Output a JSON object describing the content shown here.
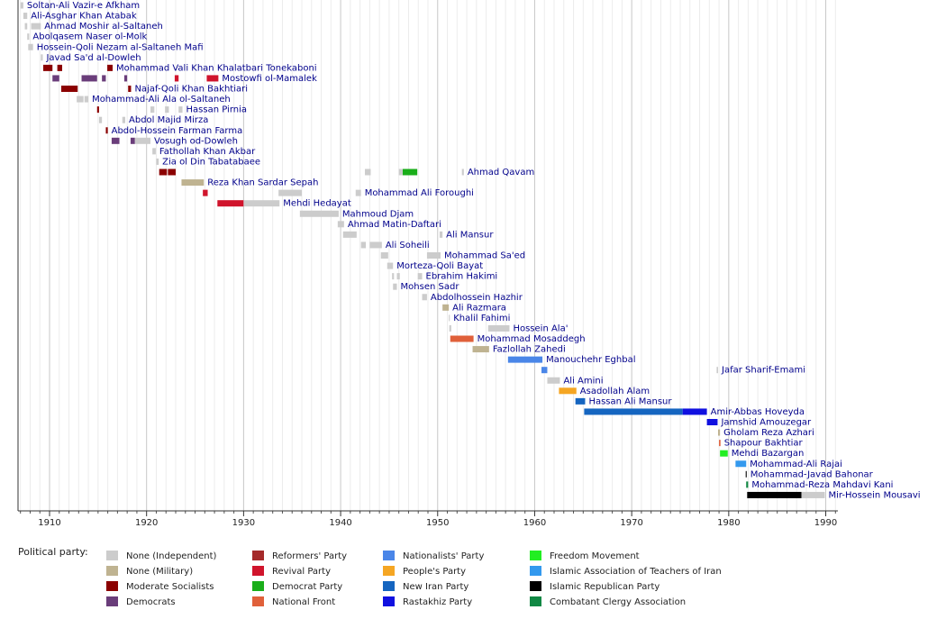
{
  "chart_data": {
    "type": "timeline",
    "xlim": [
      1906.75,
      1991.25
    ],
    "xticks": [
      1910,
      1920,
      1930,
      1940,
      1950,
      1960,
      1970,
      1980,
      1990
    ],
    "minor_xticks": [
      1907,
      1908,
      1909,
      1911,
      1912,
      1913,
      1914,
      1915,
      1916,
      1917,
      1918,
      1919,
      1921,
      1922,
      1923,
      1924,
      1925,
      1926,
      1927,
      1928,
      1929,
      1931,
      1932,
      1933,
      1934,
      1935,
      1936,
      1937,
      1938,
      1939,
      1941,
      1942,
      1943,
      1944,
      1945,
      1946,
      1947,
      1948,
      1949,
      1951,
      1952,
      1953,
      1954,
      1955,
      1956,
      1957,
      1958,
      1959,
      1961,
      1962,
      1963,
      1964,
      1965,
      1966,
      1967,
      1968,
      1969,
      1971,
      1972,
      1973,
      1974,
      1975,
      1976,
      1977,
      1978,
      1979,
      1981,
      1982,
      1983,
      1984,
      1985,
      1986,
      1987,
      1988,
      1989,
      1991
    ],
    "grid": true,
    "legend_title": "Political party:",
    "series": [
      {
        "name": "None (Independent)",
        "color": "#cccccc"
      },
      {
        "name": "None (Military)",
        "color": "#bfb391"
      },
      {
        "name": "Moderate Socialists",
        "color": "#8b0000"
      },
      {
        "name": "Democrats",
        "color": "#6a3d7a"
      },
      {
        "name": "Reformers' Party",
        "color": "#a52a2a"
      },
      {
        "name": "Revival Party",
        "color": "#d0142c"
      },
      {
        "name": "Democrat Party",
        "color": "#1aae1a"
      },
      {
        "name": "National Front",
        "color": "#e0603a"
      },
      {
        "name": "Nationalists' Party",
        "color": "#4a86e8"
      },
      {
        "name": "People's Party",
        "color": "#f5a623"
      },
      {
        "name": "New Iran Party",
        "color": "#1565c0"
      },
      {
        "name": "Rastakhiz Party",
        "color": "#1010e0"
      },
      {
        "name": "Freedom Movement",
        "color": "#22ee22"
      },
      {
        "name": "Islamic Association of Teachers of Iran",
        "color": "#3399ee"
      },
      {
        "name": "Islamic Republican Party",
        "color": "#000000"
      },
      {
        "name": "Combatant Clergy Association",
        "color": "#118844"
      }
    ],
    "rows": [
      {
        "name": "Soltan-Ali Vazir-e Afkham",
        "terms": [
          {
            "start": 1907.0,
            "end": 1907.3,
            "party": "None (Independent)"
          }
        ]
      },
      {
        "name": "Ali-Asghar Khan Atabak",
        "terms": [
          {
            "start": 1907.3,
            "end": 1907.7,
            "party": "None (Independent)"
          }
        ]
      },
      {
        "name": "Ahmad Moshir al-Saltaneh",
        "terms": [
          {
            "start": 1907.45,
            "end": 1907.7,
            "party": "None (Independent)"
          },
          {
            "start": 1908.1,
            "end": 1909.1,
            "party": "None (Independent)"
          }
        ]
      },
      {
        "name": "Abolqasem Naser ol-Molk",
        "terms": [
          {
            "start": 1907.7,
            "end": 1907.9,
            "party": "None (Independent)"
          }
        ]
      },
      {
        "name": "Hossein-Qoli Nezam al-Saltaneh Mafi",
        "terms": [
          {
            "start": 1907.8,
            "end": 1908.3,
            "party": "None (Independent)"
          }
        ]
      },
      {
        "name": "Javad Sa'd al-Dowleh",
        "terms": [
          {
            "start": 1909.1,
            "end": 1909.3,
            "party": "None (Independent)"
          }
        ]
      },
      {
        "name": "Mohammad Vali Khan Khalatbari Tonekaboni",
        "terms": [
          {
            "start": 1909.35,
            "end": 1910.3,
            "party": "Moderate Socialists"
          },
          {
            "start": 1910.8,
            "end": 1911.3,
            "party": "Moderate Socialists"
          },
          {
            "start": 1915.95,
            "end": 1916.5,
            "party": "Moderate Socialists"
          }
        ]
      },
      {
        "name": "Mostowfi ol-Mamalek",
        "terms": [
          {
            "start": 1910.3,
            "end": 1911.0,
            "party": "Democrats"
          },
          {
            "start": 1913.3,
            "end": 1914.9,
            "party": "Democrats"
          },
          {
            "start": 1915.4,
            "end": 1915.8,
            "party": "Democrats"
          },
          {
            "start": 1917.7,
            "end": 1918.0,
            "party": "Democrats"
          },
          {
            "start": 1922.9,
            "end": 1923.3,
            "party": "Revival Party"
          },
          {
            "start": 1926.2,
            "end": 1927.4,
            "party": "Revival Party"
          }
        ]
      },
      {
        "name": "Najaf-Qoli Khan Bakhtiari",
        "terms": [
          {
            "start": 1911.2,
            "end": 1912.9,
            "party": "Moderate Socialists"
          },
          {
            "start": 1918.1,
            "end": 1918.4,
            "party": "Moderate Socialists"
          }
        ]
      },
      {
        "name": "Mohammad-Ali Ala ol-Saltaneh",
        "terms": [
          {
            "start": 1912.8,
            "end": 1913.5,
            "party": "None (Independent)"
          },
          {
            "start": 1913.6,
            "end": 1914.0,
            "party": "None (Independent)"
          }
        ]
      },
      {
        "name": "Hassan Pirnia",
        "terms": [
          {
            "start": 1914.9,
            "end": 1915.1,
            "party": "Moderate Socialists"
          },
          {
            "start": 1920.4,
            "end": 1920.8,
            "party": "None (Independent)"
          },
          {
            "start": 1921.9,
            "end": 1922.3,
            "party": "None (Independent)"
          },
          {
            "start": 1923.3,
            "end": 1923.7,
            "party": "None (Independent)"
          }
        ]
      },
      {
        "name": "Abdol Majid Mirza",
        "terms": [
          {
            "start": 1915.1,
            "end": 1915.4,
            "party": "None (Independent)"
          },
          {
            "start": 1917.5,
            "end": 1917.8,
            "party": "None (Independent)"
          }
        ]
      },
      {
        "name": "Abdol-Hossein Farman Farma",
        "terms": [
          {
            "start": 1915.8,
            "end": 1916.0,
            "party": "Moderate Socialists"
          }
        ]
      },
      {
        "name": "Vosugh od-Dowleh",
        "terms": [
          {
            "start": 1916.4,
            "end": 1917.2,
            "party": "Democrats"
          },
          {
            "start": 1918.35,
            "end": 1918.8,
            "party": "Democrats"
          },
          {
            "start": 1918.8,
            "end": 1920.4,
            "party": "None (Independent)"
          }
        ]
      },
      {
        "name": "Fathollah Khan Akbar",
        "terms": [
          {
            "start": 1920.6,
            "end": 1920.95,
            "party": "None (Independent)"
          }
        ]
      },
      {
        "name": "Zia ol Din Tabatabaee",
        "terms": [
          {
            "start": 1921.0,
            "end": 1921.25,
            "party": "None (Independent)"
          }
        ]
      },
      {
        "name": "Ahmad Qavam",
        "terms": [
          {
            "start": 1921.3,
            "end": 1922.1,
            "party": "Moderate Socialists"
          },
          {
            "start": 1922.2,
            "end": 1923.0,
            "party": "Moderate Socialists"
          },
          {
            "start": 1942.5,
            "end": 1943.1,
            "party": "None (Independent)"
          },
          {
            "start": 1946.0,
            "end": 1946.4,
            "party": "None (Independent)"
          },
          {
            "start": 1946.4,
            "end": 1947.9,
            "party": "Democrat Party"
          },
          {
            "start": 1952.5,
            "end": 1952.7,
            "party": "None (Independent)"
          }
        ]
      },
      {
        "name": "Reza Khan Sardar Sepah",
        "terms": [
          {
            "start": 1923.6,
            "end": 1925.9,
            "party": "None (Military)"
          }
        ]
      },
      {
        "name": "Mohammad Ali Foroughi",
        "terms": [
          {
            "start": 1925.8,
            "end": 1926.3,
            "party": "Revival Party"
          },
          {
            "start": 1933.6,
            "end": 1936.0,
            "party": "None (Independent)"
          },
          {
            "start": 1941.55,
            "end": 1942.1,
            "party": "None (Independent)"
          }
        ]
      },
      {
        "name": "Mehdi Hedayat",
        "terms": [
          {
            "start": 1927.3,
            "end": 1930.0,
            "party": "Revival Party"
          },
          {
            "start": 1930.0,
            "end": 1933.7,
            "party": "None (Independent)"
          }
        ]
      },
      {
        "name": "Mahmoud Djam",
        "terms": [
          {
            "start": 1935.8,
            "end": 1939.8,
            "party": "None (Independent)"
          }
        ]
      },
      {
        "name": "Ahmad Matin-Daftari",
        "terms": [
          {
            "start": 1939.7,
            "end": 1940.35,
            "party": "None (Independent)"
          }
        ]
      },
      {
        "name": "Ali Mansur",
        "terms": [
          {
            "start": 1940.25,
            "end": 1941.65,
            "party": "None (Independent)"
          },
          {
            "start": 1950.2,
            "end": 1950.5,
            "party": "None (Independent)"
          }
        ]
      },
      {
        "name": "Ali Soheili",
        "terms": [
          {
            "start": 1942.1,
            "end": 1942.6,
            "party": "None (Independent)"
          },
          {
            "start": 1943.0,
            "end": 1944.25,
            "party": "None (Independent)"
          }
        ]
      },
      {
        "name": "Mohammad Sa'ed",
        "terms": [
          {
            "start": 1944.15,
            "end": 1944.9,
            "party": "None (Independent)"
          },
          {
            "start": 1948.9,
            "end": 1950.3,
            "party": "None (Independent)"
          }
        ]
      },
      {
        "name": "Morteza-Qoli Bayat",
        "terms": [
          {
            "start": 1944.8,
            "end": 1945.4,
            "party": "None (Independent)"
          }
        ]
      },
      {
        "name": "Ebrahim Hakimi",
        "terms": [
          {
            "start": 1945.3,
            "end": 1945.5,
            "party": "None (Independent)"
          },
          {
            "start": 1945.8,
            "end": 1946.1,
            "party": "None (Independent)"
          },
          {
            "start": 1947.95,
            "end": 1948.4,
            "party": "None (Independent)"
          }
        ]
      },
      {
        "name": "Mohsen Sadr",
        "terms": [
          {
            "start": 1945.4,
            "end": 1945.8,
            "party": "None (Independent)"
          }
        ]
      },
      {
        "name": "Abdolhossein Hazhir",
        "terms": [
          {
            "start": 1948.4,
            "end": 1948.9,
            "party": "None (Independent)"
          }
        ]
      },
      {
        "name": "Ali Razmara",
        "terms": [
          {
            "start": 1950.5,
            "end": 1951.15,
            "party": "None (Military)"
          }
        ]
      },
      {
        "name": "Khalil Fahimi",
        "terms": [
          {
            "start": 1951.15,
            "end": 1951.25,
            "party": "None (Independent)"
          }
        ]
      },
      {
        "name": "Hossein Ala'",
        "terms": [
          {
            "start": 1951.2,
            "end": 1951.4,
            "party": "None (Independent)"
          },
          {
            "start": 1955.2,
            "end": 1957.4,
            "party": "None (Independent)"
          }
        ]
      },
      {
        "name": "Mohammad Mosaddegh",
        "terms": [
          {
            "start": 1951.3,
            "end": 1953.7,
            "party": "National Front"
          }
        ]
      },
      {
        "name": "Fazlollah Zahedi",
        "terms": [
          {
            "start": 1953.6,
            "end": 1955.3,
            "party": "None (Military)"
          }
        ]
      },
      {
        "name": "Manouchehr Eghbal",
        "terms": [
          {
            "start": 1957.25,
            "end": 1960.8,
            "party": "Nationalists' Party"
          }
        ]
      },
      {
        "name": "Jafar Sharif-Emami",
        "terms": [
          {
            "start": 1960.7,
            "end": 1961.3,
            "party": "Nationalists' Party"
          },
          {
            "start": 1978.75,
            "end": 1978.9,
            "party": "None (Independent)"
          }
        ]
      },
      {
        "name": "Ali Amini",
        "terms": [
          {
            "start": 1961.3,
            "end": 1962.6,
            "party": "None (Independent)"
          }
        ]
      },
      {
        "name": "Asadollah Alam",
        "terms": [
          {
            "start": 1962.5,
            "end": 1964.3,
            "party": "People's Party"
          }
        ]
      },
      {
        "name": "Hassan Ali Mansur",
        "terms": [
          {
            "start": 1964.2,
            "end": 1965.2,
            "party": "New Iran Party"
          }
        ]
      },
      {
        "name": "Amir-Abbas Hoveyda",
        "terms": [
          {
            "start": 1965.1,
            "end": 1975.25,
            "party": "New Iran Party"
          },
          {
            "start": 1975.25,
            "end": 1977.75,
            "party": "Rastakhiz Party"
          }
        ]
      },
      {
        "name": "Jamshid Amouzegar",
        "terms": [
          {
            "start": 1977.75,
            "end": 1978.85,
            "party": "Rastakhiz Party"
          }
        ]
      },
      {
        "name": "Gholam Reza Azhari",
        "terms": [
          {
            "start": 1978.9,
            "end": 1979.1,
            "party": "None (Military)"
          }
        ]
      },
      {
        "name": "Shapour Bakhtiar",
        "terms": [
          {
            "start": 1979.0,
            "end": 1979.15,
            "party": "National Front"
          }
        ]
      },
      {
        "name": "Mehdi Bazargan",
        "terms": [
          {
            "start": 1979.1,
            "end": 1979.9,
            "party": "Freedom Movement"
          }
        ]
      },
      {
        "name": "Mohammad-Ali Rajai",
        "terms": [
          {
            "start": 1980.7,
            "end": 1981.8,
            "party": "Islamic Association of Teachers of Iran"
          }
        ]
      },
      {
        "name": "Mohammad-Javad Bahonar",
        "terms": [
          {
            "start": 1981.75,
            "end": 1981.85,
            "party": "Islamic Republican Party"
          }
        ]
      },
      {
        "name": "Mohammad-Reza Mahdavi Kani",
        "terms": [
          {
            "start": 1981.8,
            "end": 1982.0,
            "party": "Combatant Clergy Association"
          }
        ]
      },
      {
        "name": "Mir-Hossein Mousavi",
        "terms": [
          {
            "start": 1981.9,
            "end": 1987.5,
            "party": "Islamic Republican Party"
          },
          {
            "start": 1987.5,
            "end": 1989.9,
            "party": "None (Independent)"
          }
        ]
      }
    ]
  }
}
